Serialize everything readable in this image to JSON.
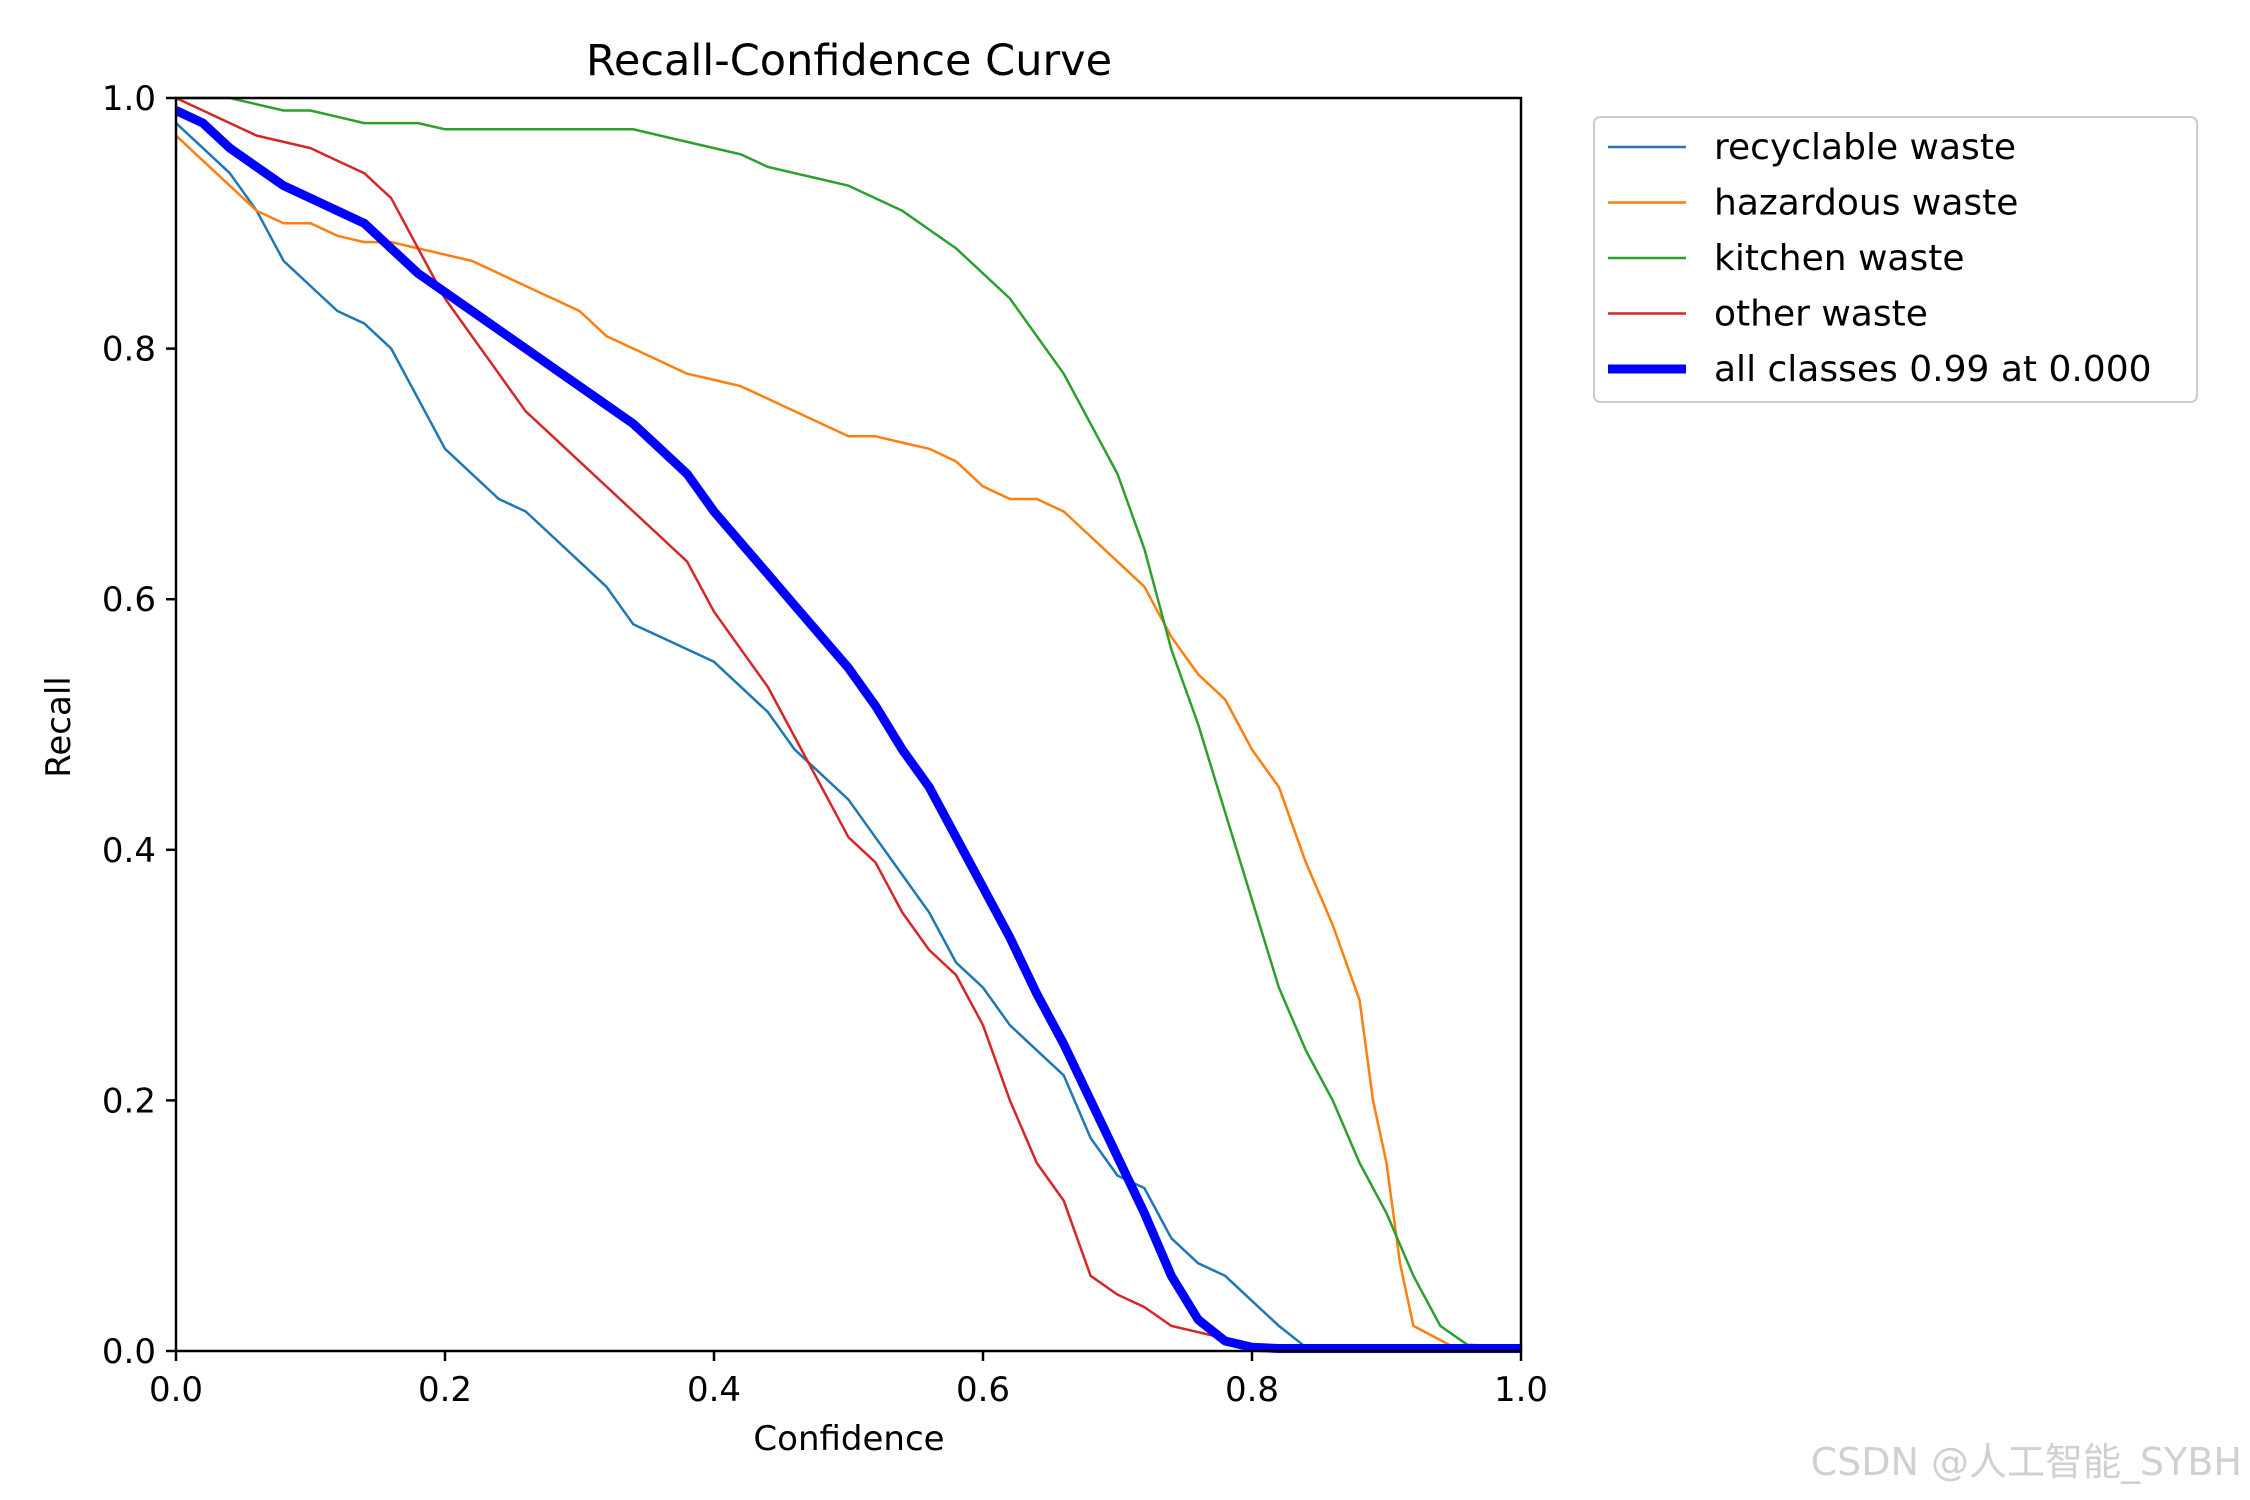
{
  "chart_data": {
    "type": "line",
    "title": "Recall-Confidence Curve",
    "xlabel": "Confidence",
    "ylabel": "Recall",
    "xlim": [
      0,
      1
    ],
    "ylim": [
      0,
      1
    ],
    "grid": false,
    "legend_position": "outside-top-right",
    "xticks": [
      "0.0",
      "0.2",
      "0.4",
      "0.6",
      "0.8",
      "1.0"
    ],
    "yticks": [
      "0.0",
      "0.2",
      "0.4",
      "0.6",
      "0.8",
      "1.0"
    ],
    "series": [
      {
        "name": "recyclable waste",
        "color": "#1f77b4",
        "emphasis": "normal",
        "x": [
          0,
          0.02,
          0.04,
          0.06,
          0.08,
          0.1,
          0.12,
          0.14,
          0.16,
          0.18,
          0.2,
          0.22,
          0.24,
          0.26,
          0.28,
          0.3,
          0.32,
          0.34,
          0.36,
          0.38,
          0.4,
          0.42,
          0.44,
          0.46,
          0.48,
          0.5,
          0.52,
          0.54,
          0.56,
          0.58,
          0.6,
          0.62,
          0.64,
          0.66,
          0.68,
          0.7,
          0.72,
          0.74,
          0.76,
          0.78,
          0.8,
          0.82,
          0.84,
          0.86
        ],
        "y": [
          0.98,
          0.96,
          0.94,
          0.91,
          0.87,
          0.85,
          0.83,
          0.82,
          0.8,
          0.76,
          0.72,
          0.7,
          0.68,
          0.67,
          0.65,
          0.63,
          0.61,
          0.58,
          0.57,
          0.56,
          0.55,
          0.53,
          0.51,
          0.48,
          0.46,
          0.44,
          0.41,
          0.38,
          0.35,
          0.31,
          0.29,
          0.26,
          0.24,
          0.22,
          0.17,
          0.14,
          0.13,
          0.09,
          0.07,
          0.06,
          0.04,
          0.02,
          0.003,
          0.003
        ]
      },
      {
        "name": "hazardous waste",
        "color": "#ff7f0e",
        "emphasis": "normal",
        "x": [
          0,
          0.02,
          0.04,
          0.06,
          0.08,
          0.1,
          0.12,
          0.14,
          0.16,
          0.18,
          0.2,
          0.22,
          0.24,
          0.26,
          0.28,
          0.3,
          0.32,
          0.34,
          0.36,
          0.38,
          0.4,
          0.42,
          0.44,
          0.46,
          0.48,
          0.5,
          0.52,
          0.54,
          0.56,
          0.58,
          0.6,
          0.62,
          0.64,
          0.66,
          0.68,
          0.7,
          0.72,
          0.74,
          0.76,
          0.78,
          0.8,
          0.82,
          0.84,
          0.86,
          0.88,
          0.89,
          0.9,
          0.91,
          0.92,
          0.95,
          1.0
        ],
        "y": [
          0.97,
          0.95,
          0.93,
          0.91,
          0.9,
          0.9,
          0.89,
          0.885,
          0.885,
          0.88,
          0.875,
          0.87,
          0.86,
          0.85,
          0.84,
          0.83,
          0.81,
          0.8,
          0.79,
          0.78,
          0.775,
          0.77,
          0.76,
          0.75,
          0.74,
          0.73,
          0.73,
          0.725,
          0.72,
          0.71,
          0.69,
          0.68,
          0.68,
          0.67,
          0.65,
          0.63,
          0.61,
          0.57,
          0.54,
          0.52,
          0.48,
          0.45,
          0.39,
          0.34,
          0.28,
          0.2,
          0.15,
          0.07,
          0.02,
          0.003,
          0.003
        ]
      },
      {
        "name": "kitchen waste",
        "color": "#2ca02c",
        "emphasis": "normal",
        "x": [
          0,
          0.02,
          0.04,
          0.06,
          0.08,
          0.1,
          0.12,
          0.14,
          0.16,
          0.18,
          0.2,
          0.22,
          0.24,
          0.26,
          0.28,
          0.3,
          0.32,
          0.34,
          0.36,
          0.38,
          0.4,
          0.42,
          0.44,
          0.46,
          0.48,
          0.5,
          0.52,
          0.54,
          0.56,
          0.58,
          0.6,
          0.62,
          0.64,
          0.66,
          0.68,
          0.7,
          0.72,
          0.74,
          0.76,
          0.78,
          0.8,
          0.82,
          0.84,
          0.86,
          0.88,
          0.9,
          0.92,
          0.94,
          0.96,
          1.0
        ],
        "y": [
          1.0,
          1.0,
          1.0,
          0.995,
          0.99,
          0.99,
          0.985,
          0.98,
          0.98,
          0.98,
          0.975,
          0.975,
          0.975,
          0.975,
          0.975,
          0.975,
          0.975,
          0.975,
          0.97,
          0.965,
          0.96,
          0.955,
          0.945,
          0.94,
          0.935,
          0.93,
          0.92,
          0.91,
          0.895,
          0.88,
          0.86,
          0.84,
          0.81,
          0.78,
          0.74,
          0.7,
          0.64,
          0.56,
          0.5,
          0.43,
          0.36,
          0.29,
          0.24,
          0.2,
          0.15,
          0.11,
          0.06,
          0.02,
          0.005,
          0.003
        ]
      },
      {
        "name": "other waste",
        "color": "#d62728",
        "emphasis": "normal",
        "x": [
          0,
          0.02,
          0.04,
          0.06,
          0.08,
          0.1,
          0.12,
          0.14,
          0.16,
          0.18,
          0.2,
          0.22,
          0.24,
          0.26,
          0.28,
          0.3,
          0.32,
          0.34,
          0.36,
          0.38,
          0.4,
          0.42,
          0.44,
          0.46,
          0.48,
          0.5,
          0.52,
          0.54,
          0.56,
          0.58,
          0.6,
          0.62,
          0.64,
          0.66,
          0.68,
          0.7,
          0.72,
          0.74,
          0.76,
          0.78,
          0.8,
          0.82,
          0.84,
          0.86,
          1.0
        ],
        "y": [
          1.0,
          0.99,
          0.98,
          0.97,
          0.965,
          0.96,
          0.95,
          0.94,
          0.92,
          0.88,
          0.84,
          0.81,
          0.78,
          0.75,
          0.73,
          0.71,
          0.69,
          0.67,
          0.65,
          0.63,
          0.59,
          0.56,
          0.53,
          0.49,
          0.45,
          0.41,
          0.39,
          0.35,
          0.32,
          0.3,
          0.26,
          0.2,
          0.15,
          0.12,
          0.06,
          0.045,
          0.035,
          0.02,
          0.015,
          0.01,
          0.005,
          0.003,
          0.003,
          0.003,
          0.003
        ]
      },
      {
        "name": "all classes 0.99 at 0.000",
        "color": "#0000ff",
        "emphasis": "bold",
        "x": [
          0,
          0.02,
          0.04,
          0.06,
          0.08,
          0.1,
          0.12,
          0.14,
          0.16,
          0.18,
          0.2,
          0.22,
          0.24,
          0.26,
          0.28,
          0.3,
          0.32,
          0.34,
          0.36,
          0.38,
          0.4,
          0.42,
          0.44,
          0.46,
          0.48,
          0.5,
          0.52,
          0.54,
          0.56,
          0.58,
          0.6,
          0.62,
          0.64,
          0.66,
          0.68,
          0.7,
          0.72,
          0.74,
          0.76,
          0.78,
          0.8,
          0.82,
          0.84,
          0.86,
          0.88,
          0.9,
          0.92,
          0.94,
          0.96,
          0.98,
          1.0
        ],
        "y": [
          0.99,
          0.98,
          0.96,
          0.945,
          0.93,
          0.92,
          0.91,
          0.9,
          0.88,
          0.86,
          0.845,
          0.83,
          0.815,
          0.8,
          0.785,
          0.77,
          0.755,
          0.74,
          0.72,
          0.7,
          0.67,
          0.645,
          0.62,
          0.595,
          0.57,
          0.545,
          0.515,
          0.48,
          0.45,
          0.41,
          0.37,
          0.33,
          0.285,
          0.245,
          0.2,
          0.155,
          0.11,
          0.06,
          0.025,
          0.008,
          0.003,
          0.002,
          0.002,
          0.002,
          0.002,
          0.002,
          0.002,
          0.002,
          0.002,
          0.002,
          0.002
        ]
      }
    ]
  },
  "watermark": "CSDN @人工智能_SYBH"
}
